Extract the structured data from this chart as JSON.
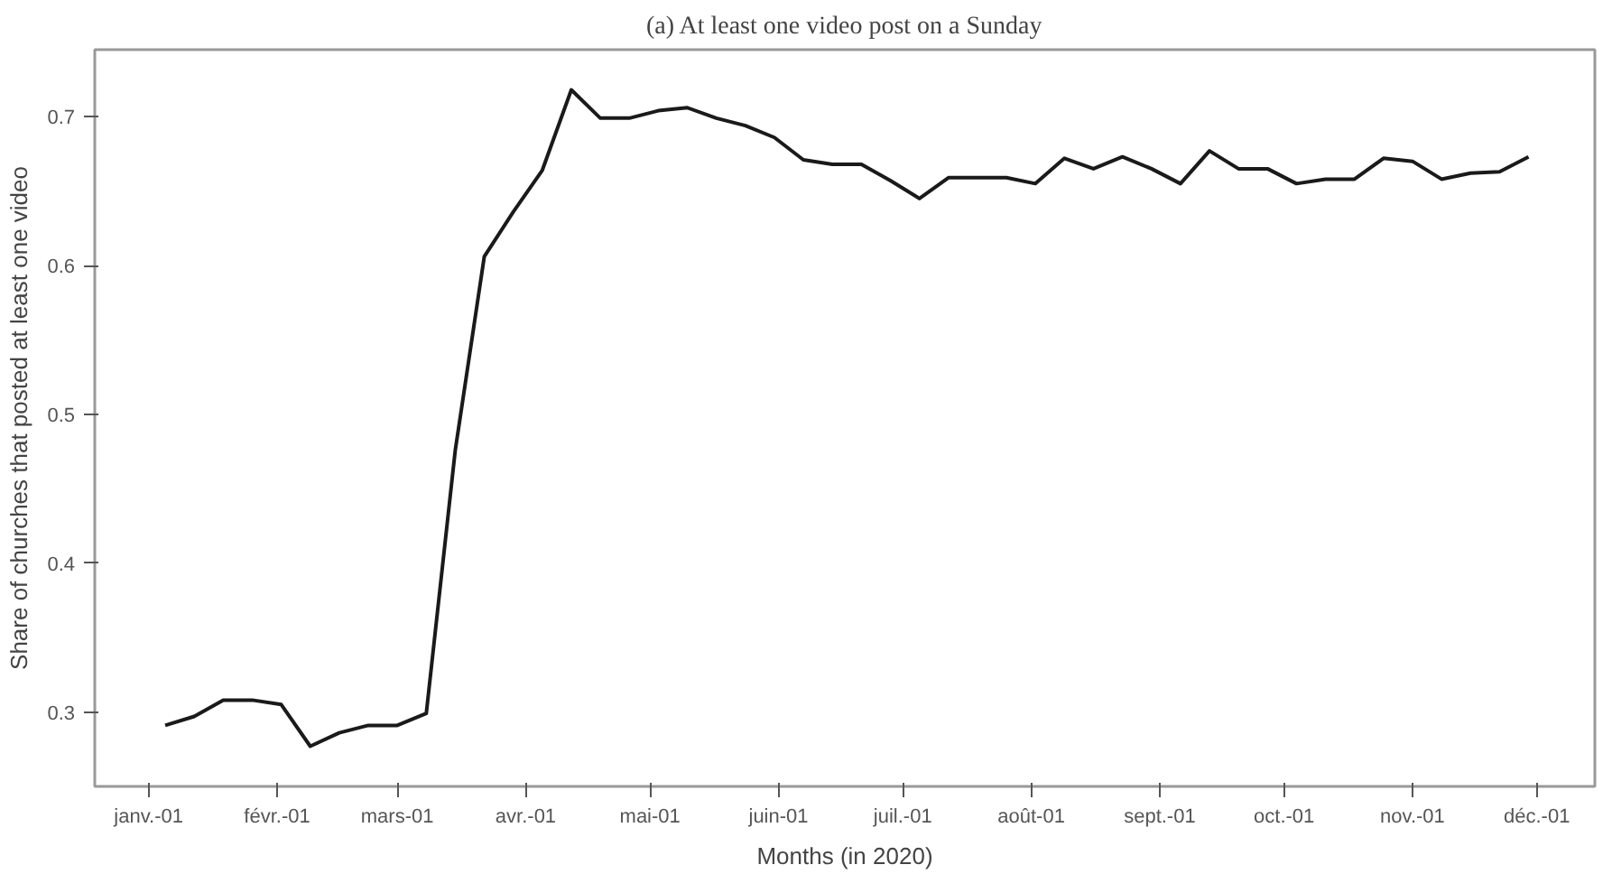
{
  "chart_data": {
    "type": "line",
    "title": "(a) At least one video post on a Sunday",
    "xlabel": "Months (in 2020)",
    "ylabel": "Share of churches that posted at least one video",
    "x": [
      "2020-01-05",
      "2020-01-12",
      "2020-01-19",
      "2020-01-26",
      "2020-02-02",
      "2020-02-09",
      "2020-02-16",
      "2020-02-23",
      "2020-03-01",
      "2020-03-08",
      "2020-03-15",
      "2020-03-22",
      "2020-03-29",
      "2020-04-05",
      "2020-04-12",
      "2020-04-19",
      "2020-04-26",
      "2020-05-03",
      "2020-05-10",
      "2020-05-17",
      "2020-05-24",
      "2020-05-31",
      "2020-06-07",
      "2020-06-14",
      "2020-06-21",
      "2020-06-28",
      "2020-07-05",
      "2020-07-12",
      "2020-07-19",
      "2020-07-26",
      "2020-08-02",
      "2020-08-09",
      "2020-08-16",
      "2020-08-23",
      "2020-08-30",
      "2020-09-06",
      "2020-09-13",
      "2020-09-20",
      "2020-09-27",
      "2020-10-04",
      "2020-10-11",
      "2020-10-18",
      "2020-10-25",
      "2020-11-01",
      "2020-11-08",
      "2020-11-15",
      "2020-11-22",
      "2020-11-29"
    ],
    "series": [
      {
        "color": "#1a1a1a",
        "values": [
          0.291,
          0.297,
          0.308,
          0.308,
          0.305,
          0.277,
          0.286,
          0.291,
          0.291,
          0.299,
          0.476,
          0.606,
          0.636,
          0.664,
          0.718,
          0.699,
          0.699,
          0.704,
          0.706,
          0.699,
          0.694,
          0.686,
          0.671,
          0.668,
          0.668,
          0.657,
          0.645,
          0.659,
          0.659,
          0.659,
          0.655,
          0.672,
          0.665,
          0.673,
          0.665,
          0.655,
          0.677,
          0.665,
          0.665,
          0.655,
          0.658,
          0.658,
          0.672,
          0.67,
          0.658,
          0.662,
          0.663,
          0.673
        ]
      }
    ],
    "xlim": [
      "2019-12-19",
      "2020-12-15"
    ],
    "xticks": [
      {
        "value": "2020-01-01",
        "label": "janv.-01"
      },
      {
        "value": "2020-02-01",
        "label": "févr.-01"
      },
      {
        "value": "2020-03-01",
        "label": "mars-01"
      },
      {
        "value": "2020-04-01",
        "label": "avr.-01"
      },
      {
        "value": "2020-05-01",
        "label": "mai-01"
      },
      {
        "value": "2020-06-01",
        "label": "juin-01"
      },
      {
        "value": "2020-07-01",
        "label": "juil.-01"
      },
      {
        "value": "2020-08-01",
        "label": "août-01"
      },
      {
        "value": "2020-09-01",
        "label": "sept.-01"
      },
      {
        "value": "2020-10-01",
        "label": "oct.-01"
      },
      {
        "value": "2020-11-01",
        "label": "nov.-01"
      },
      {
        "value": "2020-12-01",
        "label": "déc.-01"
      }
    ],
    "ylim": [
      0.25,
      0.745
    ],
    "yticks": [
      0.3,
      0.4,
      0.5,
      0.6,
      0.7
    ],
    "grid": false,
    "marker": "none",
    "line_style": "solid"
  }
}
